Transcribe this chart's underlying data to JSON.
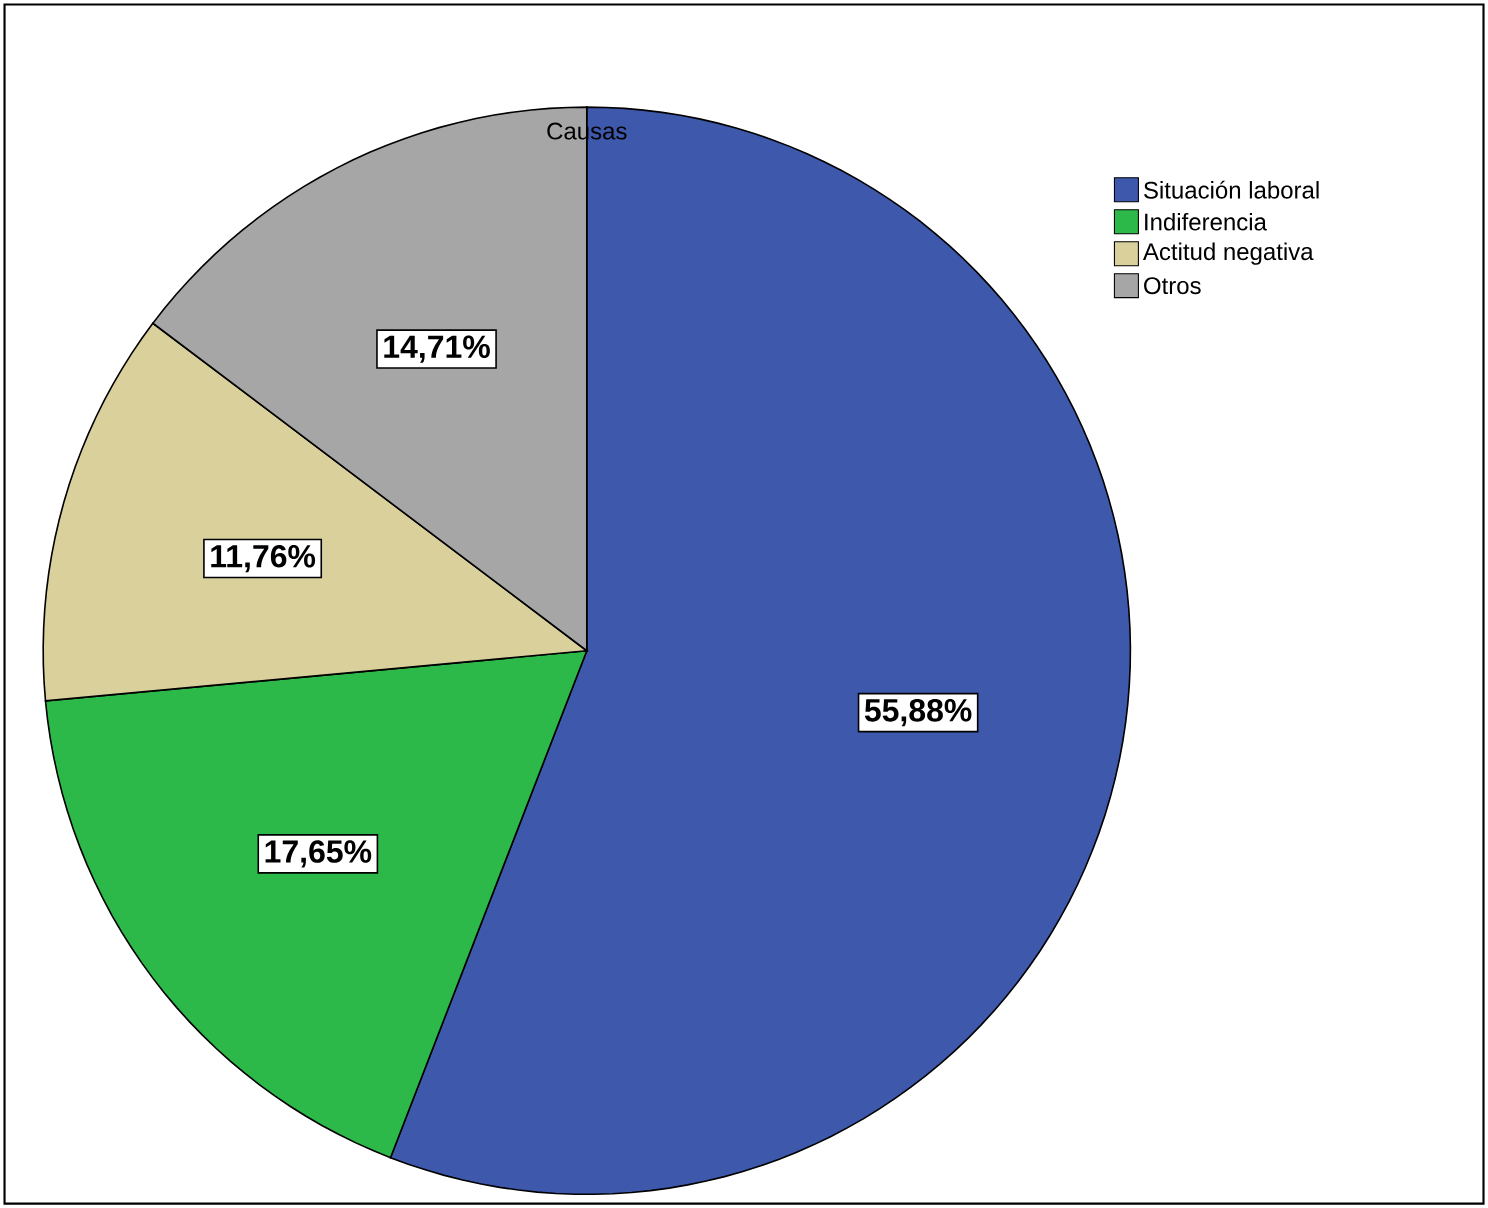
{
  "chart_data": {
    "type": "pie",
    "title": "Causas",
    "categories": [
      "Situación laboral",
      "Indiferencia",
      "Actitud negativa",
      "Otros"
    ],
    "values": [
      55.88,
      17.65,
      11.76,
      14.71
    ],
    "value_labels": [
      "55,88%",
      "17,65%",
      "11,76%",
      "14,71%"
    ],
    "colors": [
      "#3e58ac",
      "#2db84a",
      "#d9d09b",
      "#a6a6a6"
    ],
    "legend": "top right"
  }
}
